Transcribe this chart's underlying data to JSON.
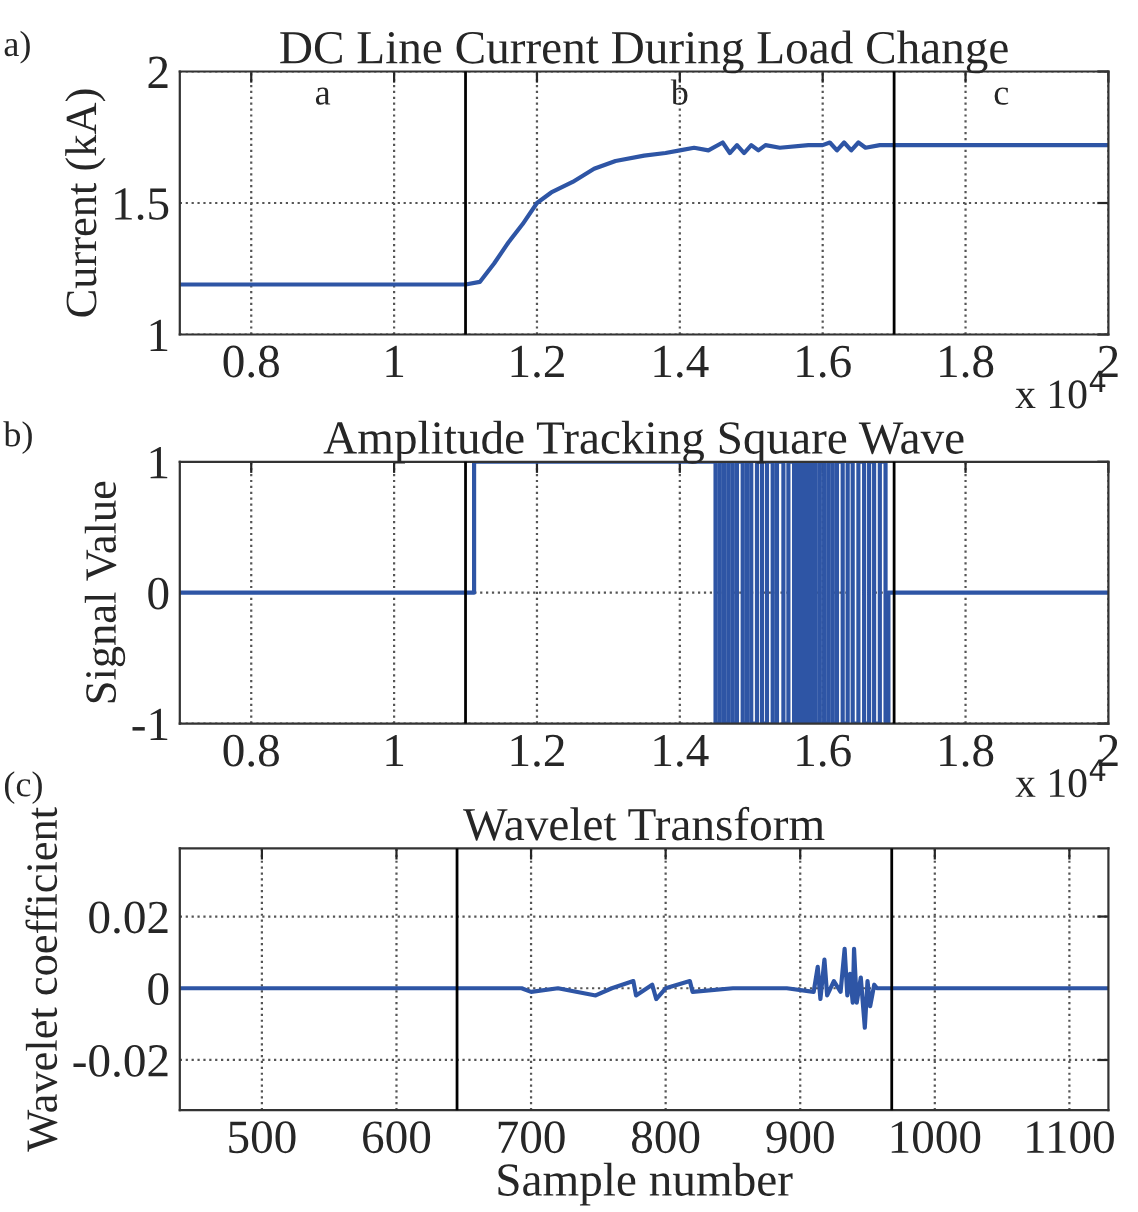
{
  "chart_data": [
    {
      "type": "line",
      "title": "DC Line Current During Load Change",
      "ylabel": "Current (kA)",
      "xlim": [
        0.7,
        2
      ],
      "xticks": [
        0.8,
        1,
        1.2,
        1.4,
        1.6,
        1.8,
        2
      ],
      "ylim": [
        1,
        2
      ],
      "yticks": [
        1,
        1.5,
        2
      ],
      "grid": true,
      "annotations": [
        "a)",
        "a",
        "b",
        "c",
        "x 10$^{4}$"
      ],
      "ref_lines": [
        {
          "axis": "x",
          "value": 1.1,
          "color": "#000000"
        },
        {
          "axis": "x",
          "value": 1.7,
          "color": "#000000"
        }
      ],
      "series": [
        {
          "color": "#2e55a5",
          "x": [
            0.7,
            1.1,
            1.12,
            1.14,
            1.16,
            1.18,
            1.2,
            1.22,
            1.25,
            1.28,
            1.31,
            1.35,
            1.38,
            1.4,
            1.42,
            1.44,
            1.46,
            1.47,
            1.48,
            1.49,
            1.5,
            1.51,
            1.52,
            1.54,
            1.58,
            1.6,
            1.61,
            1.62,
            1.63,
            1.64,
            1.65,
            1.66,
            1.68,
            1.7,
            2.0
          ],
          "values": [
            1.19,
            1.19,
            1.2,
            1.27,
            1.35,
            1.42,
            1.5,
            1.54,
            1.58,
            1.63,
            1.66,
            1.68,
            1.69,
            1.7,
            1.71,
            1.7,
            1.73,
            1.69,
            1.72,
            1.69,
            1.72,
            1.7,
            1.72,
            1.71,
            1.72,
            1.72,
            1.73,
            1.7,
            1.73,
            1.7,
            1.73,
            1.71,
            1.72,
            1.72,
            1.72
          ]
        }
      ]
    },
    {
      "type": "step",
      "title": "Amplitude Tracking Square Wave",
      "ylabel": "Signal Value",
      "xlim": [
        0.7,
        2
      ],
      "xticks": [
        0.8,
        1,
        1.2,
        1.4,
        1.6,
        1.8,
        2
      ],
      "ylim": [
        -1,
        1
      ],
      "yticks": [
        -1,
        0,
        1
      ],
      "grid": true,
      "annotations": [
        "b)",
        "x 10$^{4}$"
      ],
      "ref_lines": [
        {
          "axis": "x",
          "value": 1.1,
          "color": "#000000"
        },
        {
          "axis": "x",
          "value": 1.7,
          "color": "#000000"
        }
      ],
      "series": [
        {
          "color": "#2e55a5",
          "x": [
            0.7,
            1.112,
            1.45,
            1.456,
            1.462,
            1.468,
            1.474,
            1.48,
            1.488,
            1.494,
            1.5,
            1.508,
            1.515,
            1.522,
            1.53,
            1.536,
            1.545,
            1.552,
            1.56,
            1.565,
            1.57,
            1.575,
            1.58,
            1.585,
            1.59,
            1.596,
            1.602,
            1.608,
            1.614,
            1.62,
            1.628,
            1.635,
            1.642,
            1.65,
            1.658,
            1.665,
            1.672,
            1.68,
            1.688,
            1.692,
            2.0
          ],
          "values": [
            0,
            1,
            -1,
            1,
            -1,
            1,
            -1,
            1,
            -1,
            1,
            -1,
            1,
            -1,
            1,
            -1,
            1,
            -1,
            1,
            -1,
            1,
            -1,
            1,
            -1,
            1,
            -1,
            1,
            -1,
            1,
            -1,
            1,
            -1,
            1,
            -1,
            1,
            -1,
            1,
            -1,
            1,
            -1,
            0,
            0
          ]
        }
      ]
    },
    {
      "type": "line",
      "title": "Wavelet Transform",
      "xlabel": "Sample number",
      "ylabel": "Wavelet coefficient",
      "xlim": [
        439,
        1129
      ],
      "xticks": [
        500,
        600,
        700,
        800,
        900,
        1000,
        1100
      ],
      "ylim": [
        -0.034,
        0.039
      ],
      "yticks": [
        -0.02,
        0,
        0.02
      ],
      "grid": true,
      "annotations": [
        "(c)"
      ],
      "ref_lines": [
        {
          "axis": "x",
          "value": 645,
          "color": "#000000"
        },
        {
          "axis": "x",
          "value": 968,
          "color": "#000000"
        }
      ],
      "series": [
        {
          "color": "#2e55a5",
          "x": [
            439,
            693,
            700,
            720,
            748,
            760,
            776,
            778,
            790,
            793,
            800,
            818,
            820,
            850,
            890,
            910,
            913,
            915,
            918,
            920,
            925,
            930,
            933,
            935,
            937,
            939,
            940,
            942,
            945,
            948,
            950,
            952,
            955,
            957,
            1129
          ],
          "values": [
            0,
            0,
            -0.001,
            0,
            -0.002,
            0,
            0.002,
            -0.002,
            0.001,
            -0.003,
            0,
            0.002,
            -0.001,
            0,
            0,
            -0.001,
            0.006,
            -0.003,
            0.008,
            -0.002,
            0.002,
            -0.001,
            0.011,
            -0.002,
            0.004,
            -0.004,
            0.011,
            -0.004,
            0.003,
            -0.011,
            0.002,
            -0.005,
            0.001,
            0,
            0
          ]
        }
      ]
    }
  ]
}
